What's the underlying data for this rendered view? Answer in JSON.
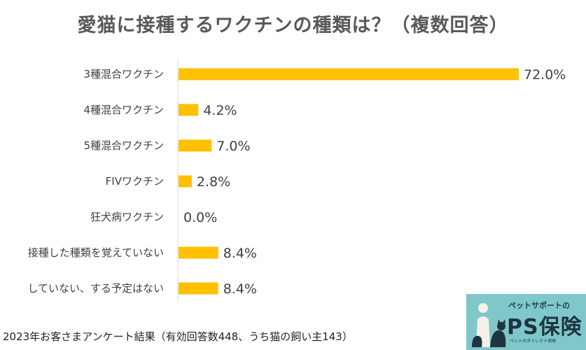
{
  "chart_data": {
    "type": "bar",
    "orientation": "horizontal",
    "title": "愛猫に接種するワクチンの種類は？（複数回答）",
    "categories": [
      "3種混合ワクチン",
      "4種混合ワクチン",
      "5種混合ワクチン",
      "FIVワクチン",
      "狂犬病ワクチン",
      "接種した種類を覚えていない",
      "していない、する予定はない"
    ],
    "values": [
      72.0,
      4.2,
      7.0,
      2.8,
      0.0,
      8.4,
      8.4
    ],
    "value_labels": [
      "72.0%",
      "4.2%",
      "7.0%",
      "2.8%",
      "0.0%",
      "8.4%",
      "8.4%"
    ],
    "xlim": [
      0,
      100
    ],
    "bar_color": "#ffc000",
    "grid": false
  },
  "footnote": "2023年お客さまアンケート結果（有効回答数448、うち猫の飼い主143）",
  "logo": {
    "subtitle": "ペットサポートの",
    "name": "PS保険",
    "tagline": "ペットのダイレクト保険"
  }
}
